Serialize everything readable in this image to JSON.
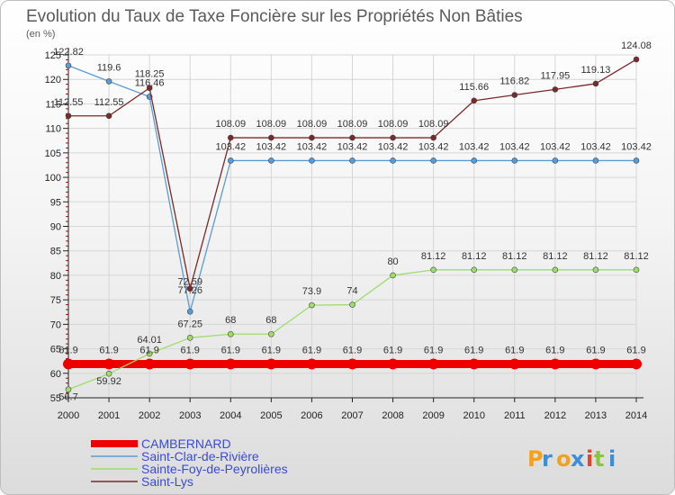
{
  "chart_data": {
    "type": "line",
    "title": "Evolution du Taux de Taxe Foncière sur les Propriétés Non Bâties",
    "subtitle": "(en %)",
    "x": [
      2000,
      2001,
      2002,
      2003,
      2004,
      2005,
      2006,
      2007,
      2008,
      2009,
      2010,
      2011,
      2012,
      2013,
      2014
    ],
    "ylim": [
      55,
      125
    ],
    "yticks": [
      55,
      60,
      65,
      70,
      75,
      80,
      85,
      90,
      95,
      100,
      105,
      110,
      115,
      120,
      125
    ],
    "grid": true,
    "series": [
      {
        "name": "CAMBERNARD",
        "color": "#ee0000",
        "width": 9,
        "marker": 6,
        "values": [
          61.9,
          61.9,
          61.9,
          61.9,
          61.9,
          61.9,
          61.9,
          61.9,
          61.9,
          61.9,
          61.9,
          61.9,
          61.9,
          61.9,
          61.9
        ],
        "labels": [
          "61.9",
          "61.9",
          "61.9",
          "61.9",
          "61.9",
          "61.9",
          "61.9",
          "61.9",
          "61.9",
          "61.9",
          "61.9",
          "61.9",
          "61.9",
          "61.9",
          "61.9"
        ]
      },
      {
        "name": "Saint-Clar-de-Rivière",
        "color": "#5b9bd5",
        "width": 1.3,
        "marker": 3,
        "values": [
          122.82,
          119.6,
          116.46,
          72.59,
          103.42,
          103.42,
          103.42,
          103.42,
          103.42,
          103.42,
          103.42,
          103.42,
          103.42,
          103.42,
          103.42
        ],
        "labels": [
          "122.82",
          "119.6",
          "116.46",
          "72.59",
          "103.42",
          "103.42",
          "103.42",
          "103.42",
          "103.42",
          "103.42",
          "103.42",
          "103.42",
          "103.42",
          "103.42",
          "103.42"
        ]
      },
      {
        "name": "Sainte-Foy-de-Peyrolières",
        "color": "#9fdc6e",
        "width": 1.3,
        "marker": 3,
        "values": [
          56.7,
          59.92,
          64.01,
          67.25,
          68,
          68,
          73.9,
          74,
          80,
          81.12,
          81.12,
          81.12,
          81.12,
          81.12,
          81.12
        ],
        "labels": [
          "56.7",
          "59.92",
          "64.01",
          "67.25",
          "68",
          "68",
          "73.9",
          "74",
          "80",
          "81.12",
          "81.12",
          "81.12",
          "81.12",
          "81.12",
          "81.12"
        ]
      },
      {
        "name": "Saint-Lys",
        "color": "#7a2a2a",
        "width": 1.3,
        "marker": 3,
        "values": [
          112.55,
          112.55,
          118.25,
          77.26,
          108.09,
          108.09,
          108.09,
          108.09,
          108.09,
          108.09,
          115.66,
          116.82,
          117.95,
          119.13,
          124.08
        ],
        "labels": [
          "112.55",
          "112.55",
          "118.25",
          "77.26",
          "108.09",
          "108.09",
          "108.09",
          "108.09",
          "108.09",
          "108.09",
          "115.66",
          "116.82",
          "117.95",
          "119.13",
          "124.08"
        ]
      }
    ]
  },
  "legend": {
    "items": [
      "CAMBERNARD",
      "Saint-Clar-de-Rivière",
      "Sainte-Foy-de-Peyrolières",
      "Saint-Lys"
    ],
    "colors": [
      "#ee0000",
      "#5b9bd5",
      "#9fdc6e",
      "#7a2a2a"
    ],
    "text_color": "#3a4bd8"
  },
  "logo": {
    "text": "Proxiti"
  }
}
